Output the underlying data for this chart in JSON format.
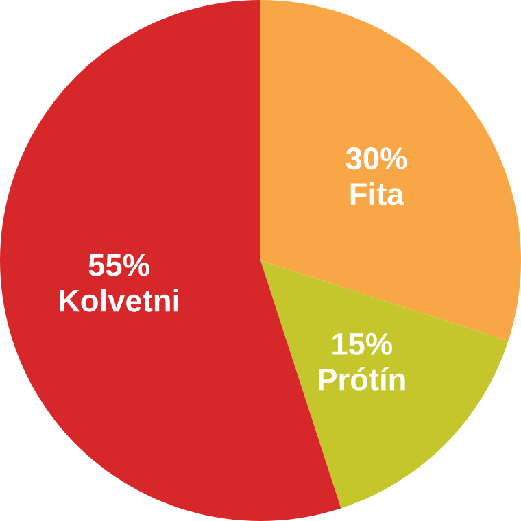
{
  "chart_data": {
    "type": "pie",
    "categories": [
      "Fita",
      "Prótín",
      "Kolvetni"
    ],
    "values": [
      30,
      15,
      55
    ],
    "value_labels": [
      "30%",
      "15%",
      "55%"
    ],
    "colors": [
      "#f9a746",
      "#c4c62c",
      "#d6282b"
    ]
  }
}
